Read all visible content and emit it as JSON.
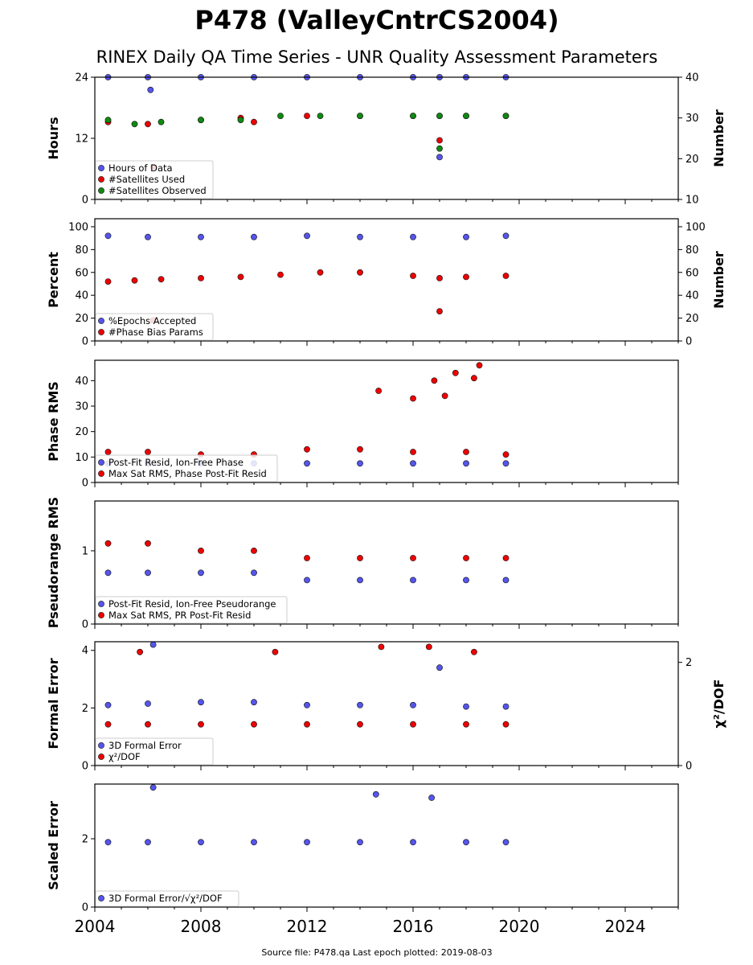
{
  "figure": {
    "title": "P478 (ValleyCntrCS2004)",
    "subtitle": "RINEX Daily QA Time Series - UNR Quality Assessment Parameters",
    "footer": "Source file: P478.qa Last epoch plotted: 2019-08-03",
    "x_ticks": [
      "2004",
      "2008",
      "2012",
      "2016",
      "2020",
      "2024"
    ],
    "x_range": [
      2004,
      2026
    ]
  },
  "colors": {
    "blue": "#5555ee",
    "red": "#ee0000",
    "green": "#118811"
  },
  "chart_data": [
    {
      "type": "scatter",
      "ylabel": "Hours",
      "ylabel_right": "Number",
      "ylim": [
        0,
        24
      ],
      "yticks": [
        "0",
        "12",
        "24"
      ],
      "ylim_right": [
        10,
        40
      ],
      "yticks_right": [
        "10",
        "20",
        "30",
        "40"
      ],
      "legend": [
        "Hours of Data",
        "#Satellites Used",
        "#Satellites Observed"
      ],
      "series": [
        {
          "name": "Hours of Data",
          "color": "blue",
          "axis": "left",
          "x": [
            2004.5,
            2006.0,
            2008.0,
            2010.0,
            2012.0,
            2014.0,
            2016.0,
            2017.0,
            2018.0,
            2019.5,
            2006.1,
            2017.0
          ],
          "y": [
            24.0,
            24.0,
            24.0,
            24.0,
            24.0,
            24.0,
            24.0,
            24.0,
            24.0,
            24.0,
            21.5,
            8.3
          ]
        },
        {
          "name": "#Satellites Used",
          "color": "red",
          "axis": "right",
          "x": [
            2004.5,
            2006.0,
            2008.0,
            2009.5,
            2010.0,
            2012.0,
            2014.0,
            2016.0,
            2017.0,
            2018.0,
            2019.5,
            2017.0,
            2006.2
          ],
          "y": [
            29,
            28.5,
            29.5,
            30,
            29,
            30.5,
            30.5,
            30.5,
            30.5,
            30.5,
            30.5,
            24.5,
            18
          ]
        },
        {
          "name": "#Satellites Observed",
          "color": "green",
          "axis": "right",
          "x": [
            2004.5,
            2005.5,
            2006.5,
            2008.0,
            2009.5,
            2011.0,
            2012.5,
            2014.0,
            2016.0,
            2017.0,
            2018.0,
            2019.5,
            2017.0
          ],
          "y": [
            29.5,
            28.5,
            29,
            29.5,
            29.5,
            30.5,
            30.5,
            30.5,
            30.5,
            30.5,
            30.5,
            30.5,
            22.5
          ]
        }
      ]
    },
    {
      "type": "scatter",
      "ylabel": "Percent",
      "ylabel_right": "Number",
      "ylim": [
        0,
        107
      ],
      "yticks": [
        "0",
        "20",
        "40",
        "60",
        "80",
        "100"
      ],
      "ylim_right": [
        0,
        107
      ],
      "yticks_right": [
        "0",
        "20",
        "40",
        "60",
        "80",
        "100"
      ],
      "legend": [
        "%Epochs Accepted",
        "#Phase Bias Params"
      ],
      "series": [
        {
          "name": "%Epochs Accepted",
          "color": "blue",
          "axis": "left",
          "x": [
            2004.5,
            2006.0,
            2008.0,
            2010.0,
            2012.0,
            2014.0,
            2016.0,
            2018.0,
            2019.5
          ],
          "y": [
            92,
            91,
            91,
            91,
            92,
            91,
            91,
            91,
            92
          ]
        },
        {
          "name": "#Phase Bias Params",
          "color": "red",
          "axis": "right",
          "x": [
            2004.5,
            2005.5,
            2006.5,
            2008.0,
            2009.5,
            2011.0,
            2012.5,
            2014.0,
            2016.0,
            2017.0,
            2018.0,
            2019.5,
            2017.0,
            2006.2
          ],
          "y": [
            52,
            53,
            54,
            55,
            56,
            58,
            60,
            60,
            57,
            55,
            56,
            57,
            26,
            18
          ]
        }
      ]
    },
    {
      "type": "scatter",
      "ylabel": "Phase RMS",
      "ylim": [
        0,
        48
      ],
      "yticks": [
        "0",
        "10",
        "20",
        "30",
        "40"
      ],
      "legend": [
        "Post-Fit Resid, Ion-Free Phase",
        "Max Sat RMS, Phase Post-Fit Resid"
      ],
      "series": [
        {
          "name": "Post-Fit Resid, Ion-Free Phase",
          "color": "blue",
          "axis": "left",
          "x": [
            2004.5,
            2006.0,
            2008.0,
            2010.0,
            2012.0,
            2014.0,
            2016.0,
            2018.0,
            2019.5
          ],
          "y": [
            7.5,
            7.5,
            7.5,
            7.5,
            7.5,
            7.5,
            7.5,
            7.5,
            7.5
          ]
        },
        {
          "name": "Max Sat RMS, Phase Post-Fit Resid",
          "color": "red",
          "axis": "left",
          "x": [
            2004.5,
            2006.0,
            2008.0,
            2010.0,
            2012.0,
            2014.0,
            2016.0,
            2018.0,
            2019.5,
            2014.7,
            2016.0,
            2016.8,
            2017.2,
            2017.6,
            2018.3,
            2018.5
          ],
          "y": [
            12,
            12,
            11,
            11,
            13,
            13,
            12,
            12,
            11,
            36,
            33,
            40,
            34,
            43,
            41,
            46
          ]
        }
      ]
    },
    {
      "type": "scatter",
      "ylabel": "Pseudorange RMS",
      "ylim": [
        0,
        1.68
      ],
      "yticks": [
        "0",
        "1"
      ],
      "legend": [
        "Post-Fit Resid, Ion-Free Pseudorange",
        "Max Sat RMS, PR Post-Fit Resid"
      ],
      "series": [
        {
          "name": "Post-Fit Resid, Ion-Free Pseudorange",
          "color": "blue",
          "axis": "left",
          "x": [
            2004.5,
            2006.0,
            2008.0,
            2010.0,
            2012.0,
            2014.0,
            2016.0,
            2018.0,
            2019.5
          ],
          "y": [
            0.7,
            0.7,
            0.7,
            0.7,
            0.6,
            0.6,
            0.6,
            0.6,
            0.6
          ]
        },
        {
          "name": "Max Sat RMS, PR Post-Fit Resid",
          "color": "red",
          "axis": "left",
          "x": [
            2004.5,
            2006.0,
            2008.0,
            2010.0,
            2012.0,
            2014.0,
            2016.0,
            2018.0,
            2019.5
          ],
          "y": [
            1.1,
            1.1,
            1.0,
            1.0,
            0.9,
            0.9,
            0.9,
            0.9,
            0.9
          ]
        }
      ]
    },
    {
      "type": "scatter",
      "ylabel": "Formal Error",
      "ylabel_right": "χ²/DOF",
      "ylim": [
        0,
        4.3
      ],
      "yticks": [
        "0",
        "2",
        "4"
      ],
      "ylim_right": [
        0,
        2.4
      ],
      "yticks_right": [
        "0",
        "2"
      ],
      "legend": [
        "3D Formal Error",
        "χ²/DOF"
      ],
      "series": [
        {
          "name": "3D Formal Error",
          "color": "blue",
          "axis": "left",
          "x": [
            2004.5,
            2006.0,
            2008.0,
            2010.0,
            2012.0,
            2014.0,
            2016.0,
            2018.0,
            2019.5,
            2006.2,
            2017.0
          ],
          "y": [
            2.1,
            2.15,
            2.2,
            2.2,
            2.1,
            2.1,
            2.1,
            2.05,
            2.05,
            4.2,
            3.4
          ]
        },
        {
          "name": "χ²/DOF",
          "color": "red",
          "axis": "right",
          "x": [
            2004.5,
            2006.0,
            2008.0,
            2010.0,
            2012.0,
            2014.0,
            2016.0,
            2018.0,
            2019.5,
            2005.7,
            2010.8,
            2014.8,
            2016.6,
            2018.3
          ],
          "y": [
            0.8,
            0.8,
            0.8,
            0.8,
            0.8,
            0.8,
            0.8,
            0.8,
            0.8,
            2.2,
            2.2,
            2.3,
            2.3,
            2.2
          ]
        }
      ]
    },
    {
      "type": "scatter",
      "ylabel": "Scaled Error",
      "ylim": [
        0,
        3.6
      ],
      "yticks": [
        "0",
        "2"
      ],
      "legend": [
        "3D Formal Error/√χ²/DOF"
      ],
      "series": [
        {
          "name": "3D Formal Error/√χ²/DOF",
          "color": "blue",
          "axis": "left",
          "x": [
            2004.5,
            2006.0,
            2008.0,
            2010.0,
            2012.0,
            2014.0,
            2016.0,
            2018.0,
            2019.5,
            2006.2,
            2014.6,
            2016.7
          ],
          "y": [
            1.9,
            1.9,
            1.9,
            1.9,
            1.9,
            1.9,
            1.9,
            1.9,
            1.9,
            3.5,
            3.3,
            3.2
          ]
        }
      ]
    }
  ]
}
